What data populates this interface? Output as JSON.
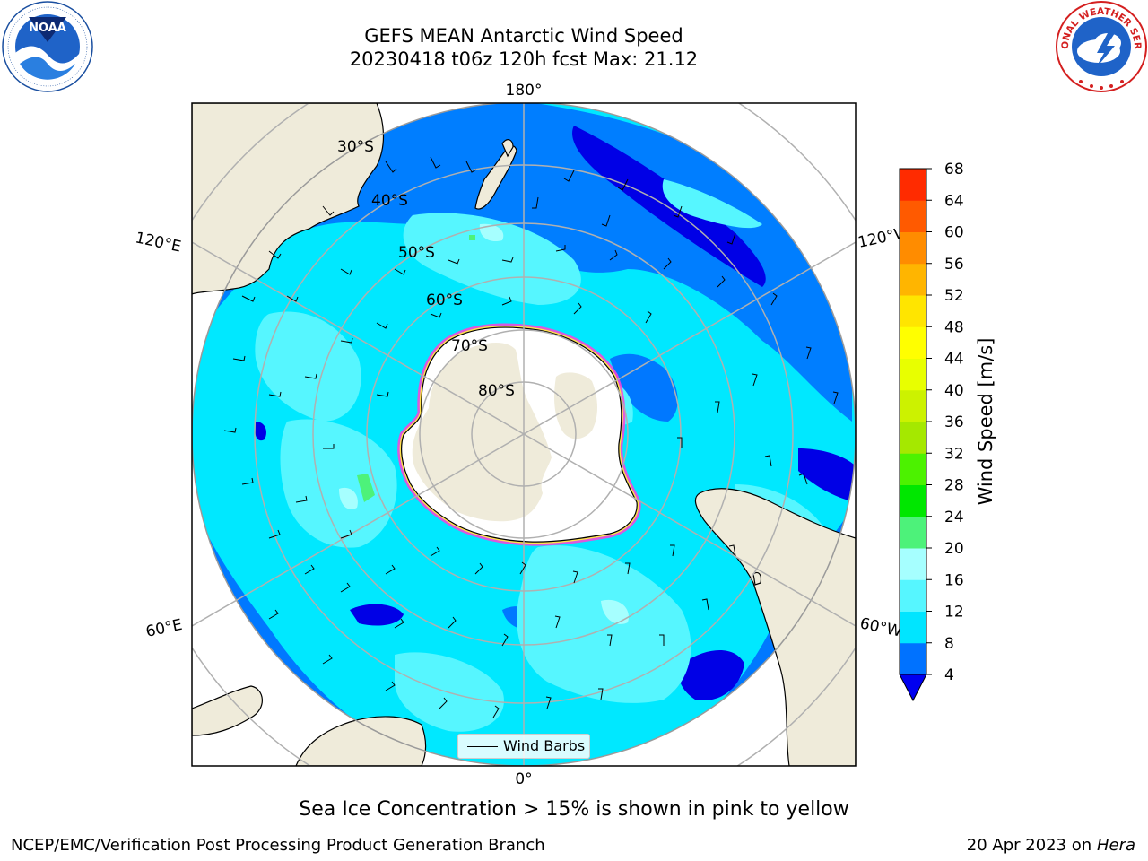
{
  "header": {
    "title_line1": "GEFS MEAN Antarctic Wind Speed",
    "title_line2": "20230418 t06z 120h fcst   Max: 21.12"
  },
  "logos": {
    "noaa_text": "NOAA",
    "nws_text": "NATIONAL WEATHER SERVICE"
  },
  "map": {
    "projection": "south-polar-stereographic",
    "lon_labels": {
      "top": "180°",
      "bottom": "0°",
      "left_upper": "120°E",
      "left_lower": "60°E",
      "right_upper": "120°W",
      "right_lower": "60°W"
    },
    "lat_labels": [
      "30°S",
      "40°S",
      "50°S",
      "60°S",
      "70°S",
      "80°S"
    ],
    "legend_label": "Wind Barbs",
    "colors": {
      "ocean_light": "#56f6ff",
      "ocean_mid": "#00e8ff",
      "ocean_dark": "#0072ff",
      "ocean_deep": "#0000e8",
      "land": "#efebda",
      "ice_sheet": "#ffffff",
      "sea_ice_pink": "#ff40d8",
      "sea_ice_yellow": "#ffe14d"
    }
  },
  "colorbar": {
    "label": "Wind Speed [m/s]",
    "ticks": [
      "4",
      "8",
      "12",
      "16",
      "20",
      "24",
      "28",
      "32",
      "36",
      "40",
      "44",
      "48",
      "52",
      "56",
      "60",
      "64",
      "68"
    ],
    "colors": [
      "#0072ff",
      "#00e5ff",
      "#56f6ff",
      "#a6ffff",
      "#4df27a",
      "#00e700",
      "#4cf200",
      "#a5e800",
      "#ccf200",
      "#e8ff00",
      "#ffff00",
      "#ffe500",
      "#ffb500",
      "#ff8c00",
      "#ff5a00",
      "#ff2b00",
      "#ff0000"
    ],
    "under_color": "#0000f0"
  },
  "footer": {
    "caption": "Sea Ice Concentration > 15% is shown in pink to yellow",
    "left": "NCEP/EMC/Verification Post Processing Product Generation Branch",
    "right_date": "20 Apr 2023 on ",
    "right_host": "Hera"
  }
}
